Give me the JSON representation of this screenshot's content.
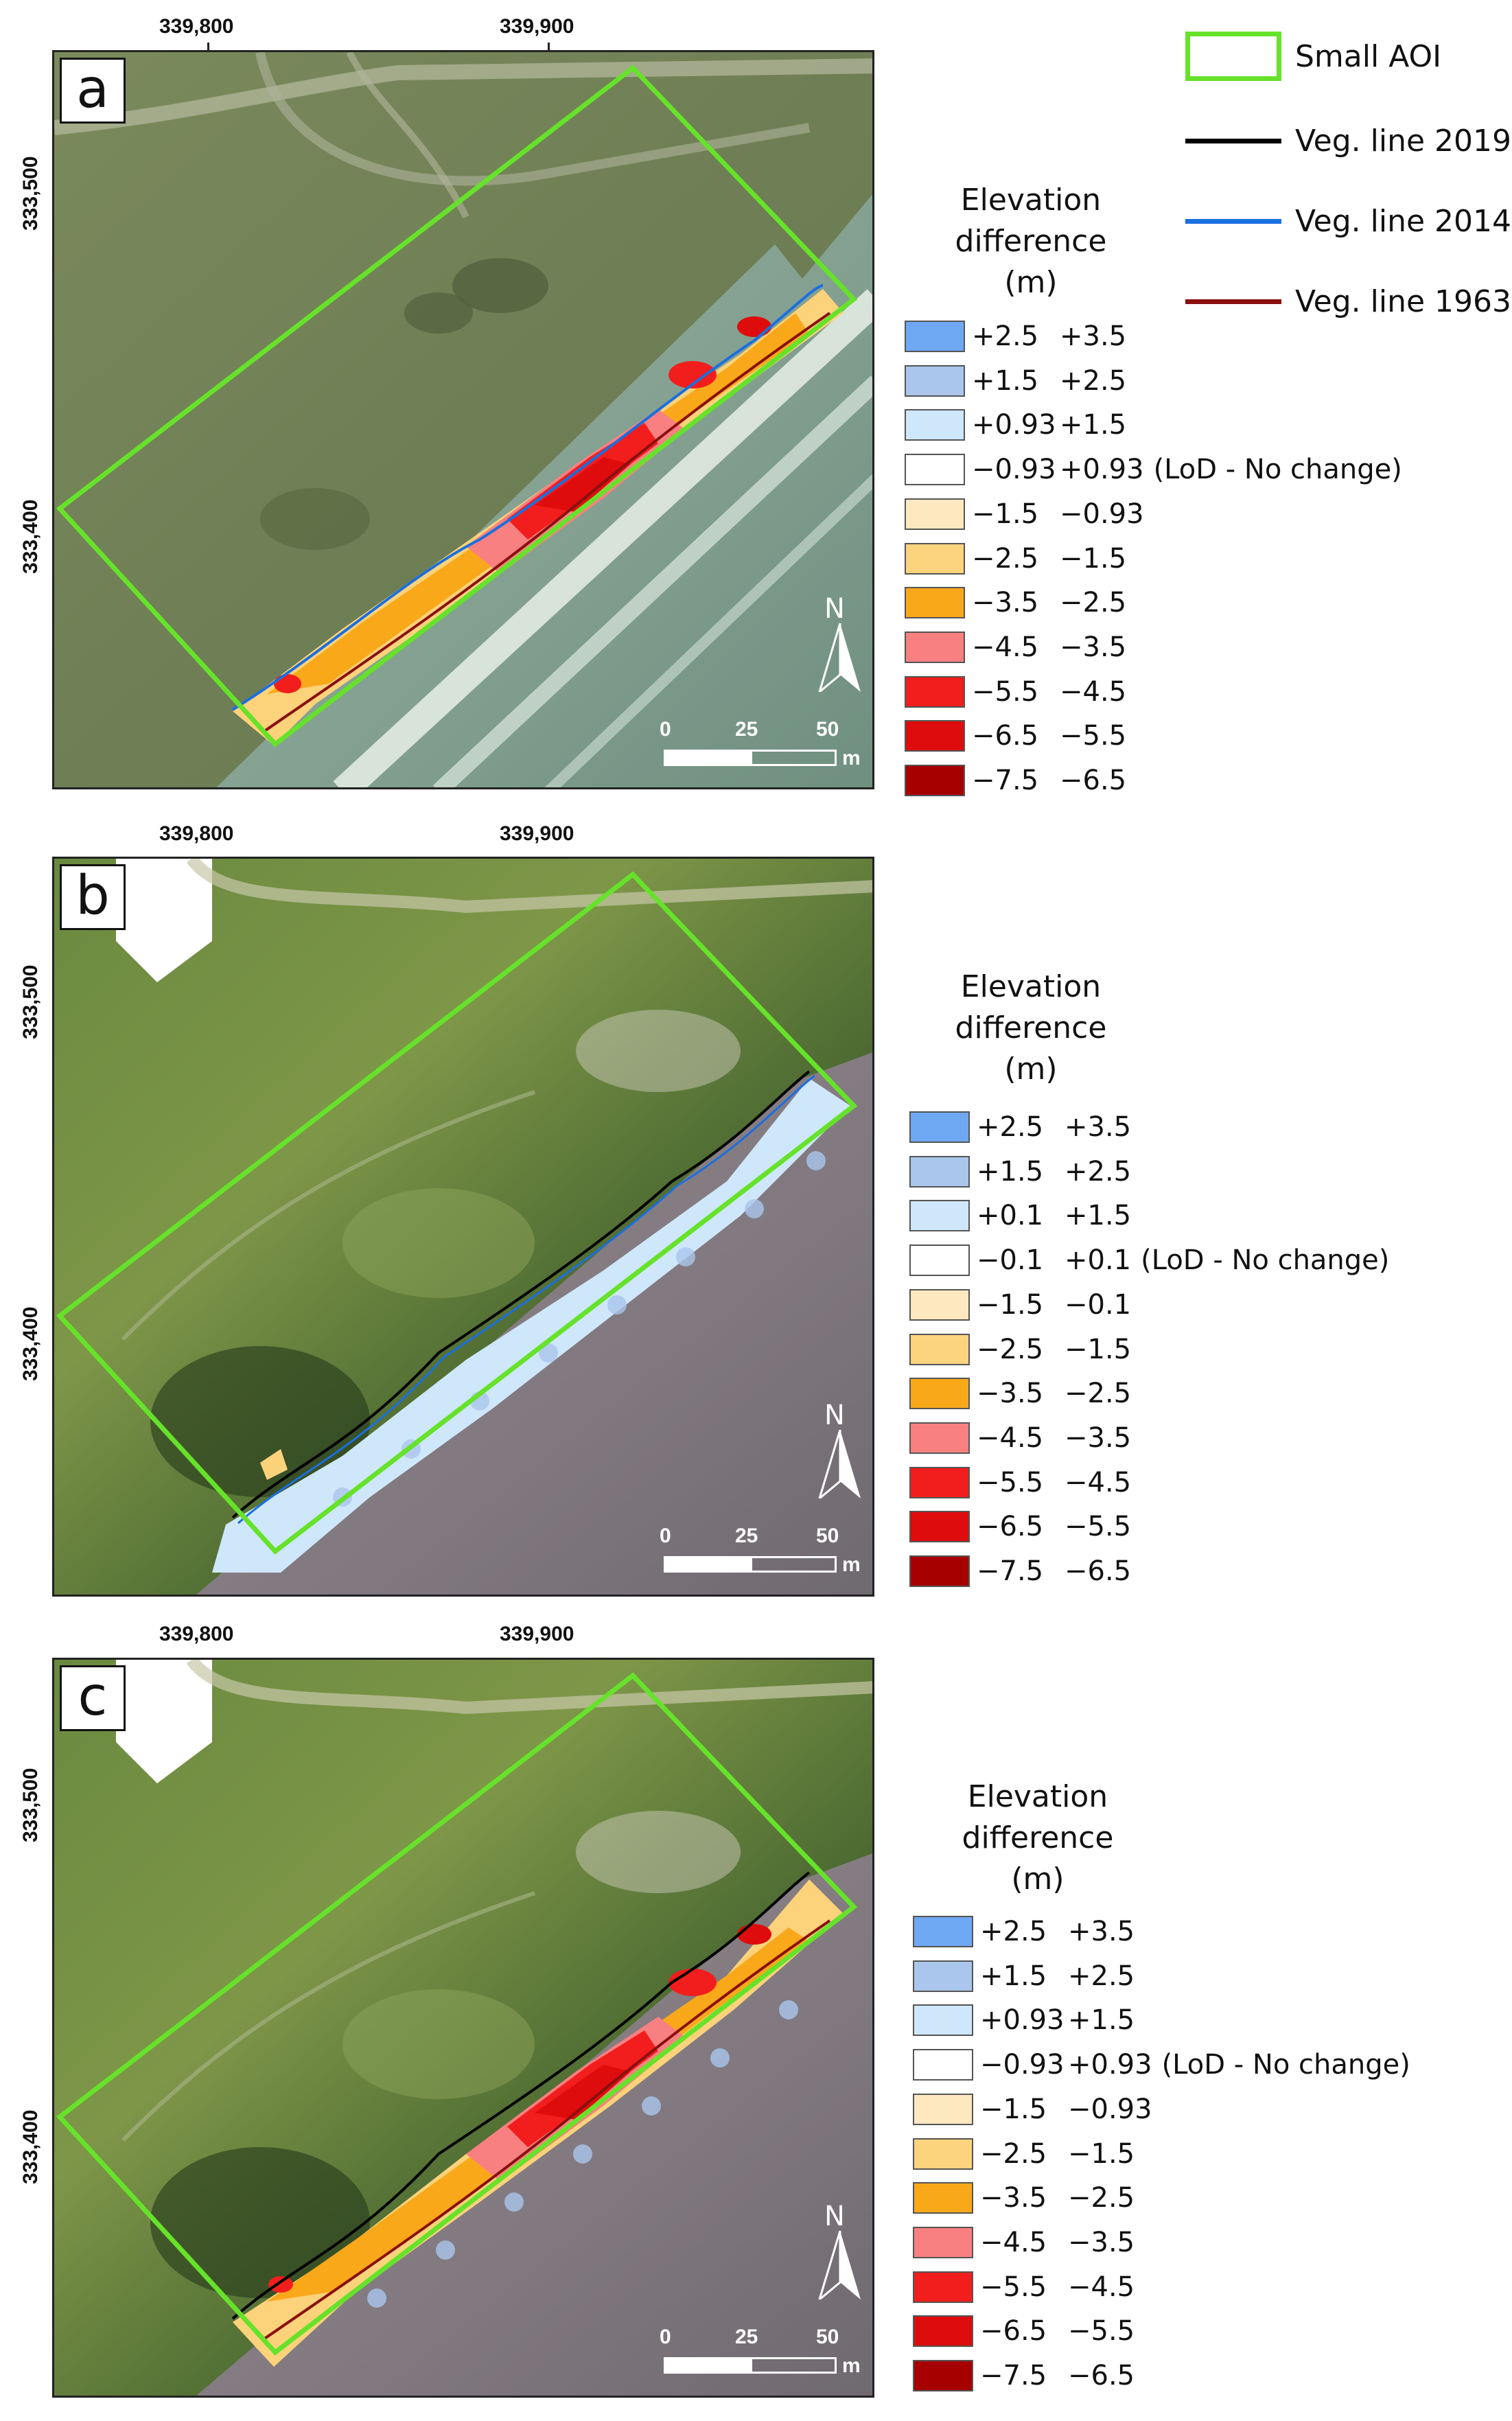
{
  "key": {
    "aoi": {
      "label": "Small AOI",
      "color": "#66e22a"
    },
    "lines": [
      {
        "label": "Veg. line 2019",
        "color": "#000000"
      },
      {
        "label": "Veg. line 2014",
        "color": "#1a6fe0"
      },
      {
        "label": "Veg. line 1963",
        "color": "#8a1010"
      }
    ]
  },
  "axes": {
    "x_ticks": [
      "339,800",
      "339,900"
    ],
    "y_ticks": [
      "333,500",
      "333,400"
    ]
  },
  "scalebar": {
    "labels": [
      "0",
      "25",
      "50"
    ],
    "unit": "m"
  },
  "north_label": "N",
  "panels": [
    {
      "label": "a",
      "legend_title": [
        "Elevation",
        "difference",
        "(m)"
      ],
      "legend": [
        {
          "lo": "+2.5",
          "hi": "+3.5",
          "color": "#6fa8f2"
        },
        {
          "lo": "+1.5",
          "hi": "+2.5",
          "color": "#aac6ec"
        },
        {
          "lo": "+0.93",
          "hi": "+1.5",
          "color": "#cfe7fa"
        },
        {
          "lo": "−0.93",
          "hi": "+0.93",
          "note": "(LoD - No change)",
          "color": "#ffffff"
        },
        {
          "lo": "−1.5",
          "hi": "−0.93",
          "color": "#fde8c0"
        },
        {
          "lo": "−2.5",
          "hi": "−1.5",
          "color": "#fdd47e"
        },
        {
          "lo": "−3.5",
          "hi": "−2.5",
          "color": "#f9a81a"
        },
        {
          "lo": "−4.5",
          "hi": "−3.5",
          "color": "#f98080"
        },
        {
          "lo": "−5.5",
          "hi": "−4.5",
          "color": "#f21d1d"
        },
        {
          "lo": "−6.5",
          "hi": "−5.5",
          "color": "#de0c0c"
        },
        {
          "lo": "−7.5",
          "hi": "−6.5",
          "color": "#a60000"
        }
      ]
    },
    {
      "label": "b",
      "legend_title": [
        "Elevation",
        "difference",
        "(m)"
      ],
      "legend": [
        {
          "lo": "+2.5",
          "hi": "+3.5",
          "color": "#6fa8f2"
        },
        {
          "lo": "+1.5",
          "hi": "+2.5",
          "color": "#aac6ec"
        },
        {
          "lo": "+0.1",
          "hi": "+1.5",
          "color": "#cfe7fa"
        },
        {
          "lo": "−0.1",
          "hi": "+0.1",
          "note": "(LoD - No change)",
          "color": "#ffffff"
        },
        {
          "lo": "−1.5",
          "hi": "−0.1",
          "color": "#fde8c0"
        },
        {
          "lo": "−2.5",
          "hi": "−1.5",
          "color": "#fdd47e"
        },
        {
          "lo": "−3.5",
          "hi": "−2.5",
          "color": "#f9a81a"
        },
        {
          "lo": "−4.5",
          "hi": "−3.5",
          "color": "#f98080"
        },
        {
          "lo": "−5.5",
          "hi": "−4.5",
          "color": "#f21d1d"
        },
        {
          "lo": "−6.5",
          "hi": "−5.5",
          "color": "#de0c0c"
        },
        {
          "lo": "−7.5",
          "hi": "−6.5",
          "color": "#a60000"
        }
      ]
    },
    {
      "label": "c",
      "legend_title": [
        "Elevation",
        "difference",
        "(m)"
      ],
      "legend": [
        {
          "lo": "+2.5",
          "hi": "+3.5",
          "color": "#6fa8f2"
        },
        {
          "lo": "+1.5",
          "hi": "+2.5",
          "color": "#aac6ec"
        },
        {
          "lo": "+0.93",
          "hi": "+1.5",
          "color": "#cfe7fa"
        },
        {
          "lo": "−0.93",
          "hi": "+0.93",
          "note": "(LoD - No change)",
          "color": "#ffffff"
        },
        {
          "lo": "−1.5",
          "hi": "−0.93",
          "color": "#fde8c0"
        },
        {
          "lo": "−2.5",
          "hi": "−1.5",
          "color": "#fdd47e"
        },
        {
          "lo": "−3.5",
          "hi": "−2.5",
          "color": "#f9a81a"
        },
        {
          "lo": "−4.5",
          "hi": "−3.5",
          "color": "#f98080"
        },
        {
          "lo": "−5.5",
          "hi": "−4.5",
          "color": "#f21d1d"
        },
        {
          "lo": "−6.5",
          "hi": "−5.5",
          "color": "#de0c0c"
        },
        {
          "lo": "−7.5",
          "hi": "−6.5",
          "color": "#a60000"
        }
      ]
    }
  ]
}
